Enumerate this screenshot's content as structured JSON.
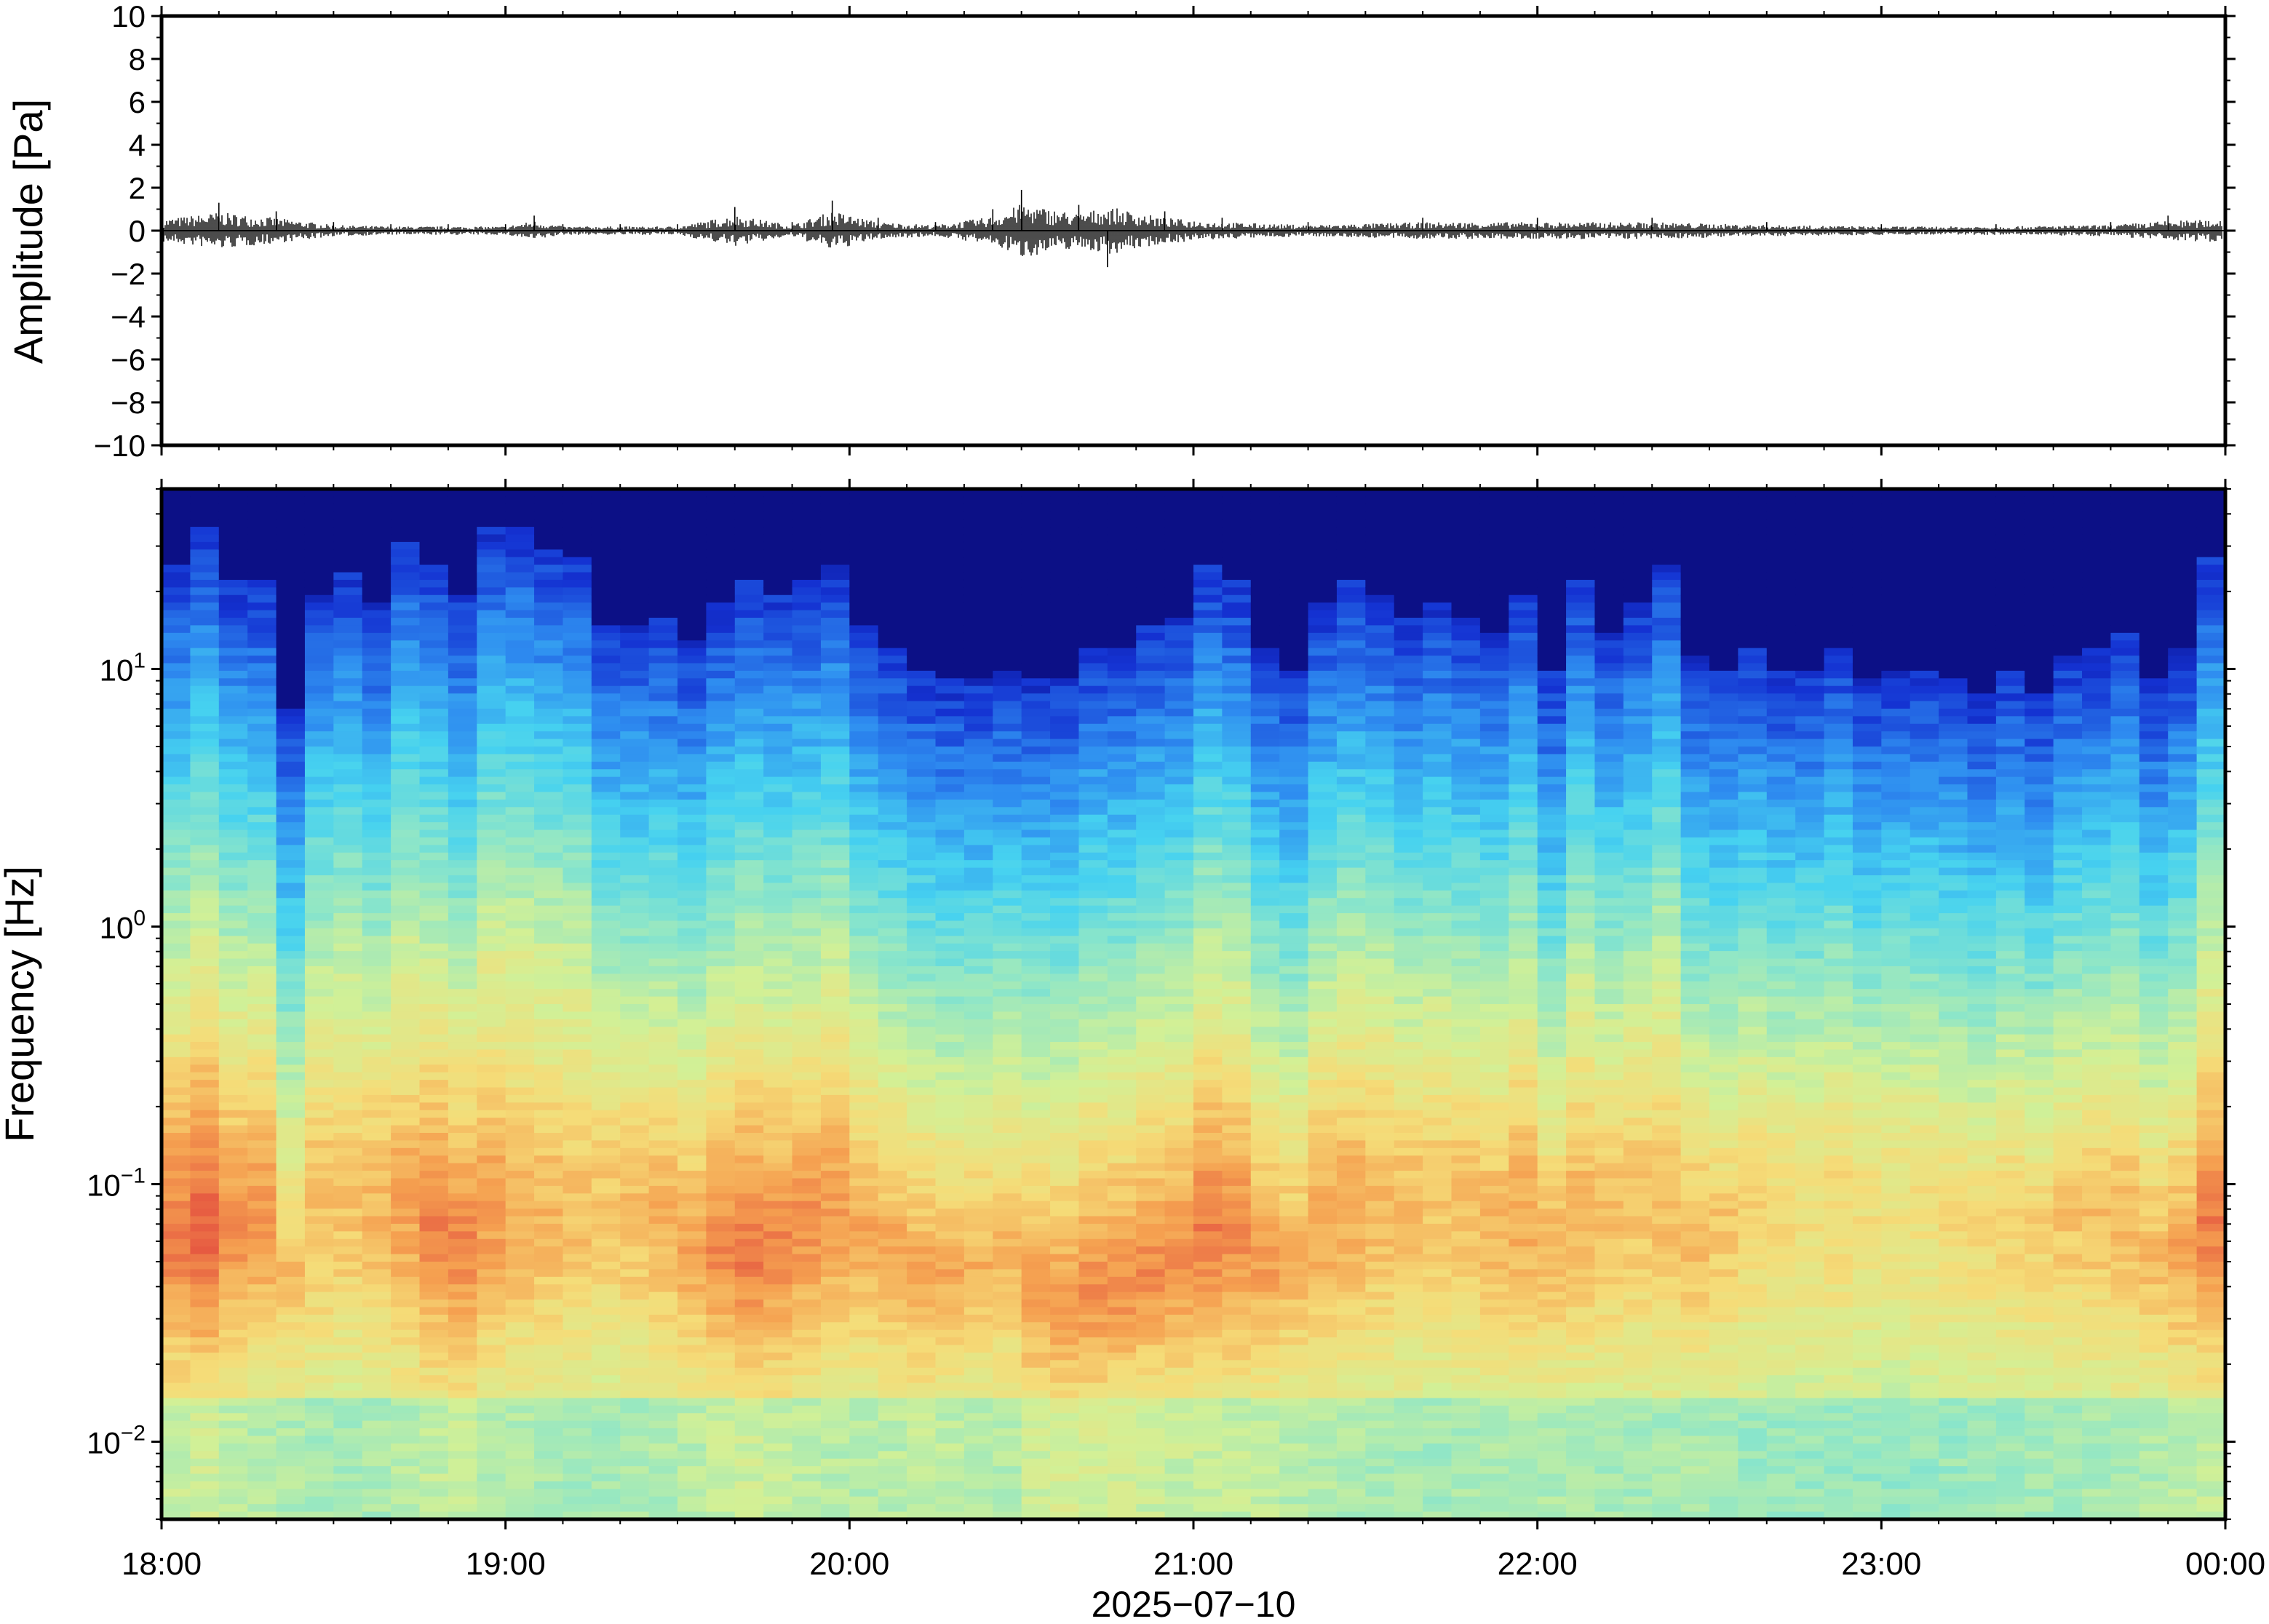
{
  "chart_data": [
    {
      "type": "line",
      "title": "",
      "ylabel": "Amplitude [Pa]",
      "xlabel": "",
      "ylim": [
        -10,
        10
      ],
      "yticks": [
        10,
        8,
        6,
        4,
        2,
        0,
        -2,
        -4,
        -6,
        -8,
        -10
      ],
      "ytick_labels": [
        "10",
        "8",
        "6",
        "4",
        "2",
        "0",
        "−2",
        "−4",
        "−6",
        "−8",
        "−10"
      ],
      "xlim": [
        "18:00",
        "00:00"
      ],
      "grid": false,
      "line_color": "#000000",
      "series": [
        {
          "values": [
            {
              "x": "18:00",
              "y": 0.8
            },
            {
              "x": "18:10",
              "y": 1.3
            },
            {
              "x": "18:20",
              "y": 0.9
            },
            {
              "x": "18:30",
              "y": 0.4
            },
            {
              "x": "18:40",
              "y": 0.3
            },
            {
              "x": "18:50",
              "y": 0.3
            },
            {
              "x": "19:00",
              "y": 0.3
            },
            {
              "x": "19:05",
              "y": 0.7
            },
            {
              "x": "19:10",
              "y": 0.3
            },
            {
              "x": "19:20",
              "y": 0.3
            },
            {
              "x": "19:30",
              "y": 0.3
            },
            {
              "x": "19:40",
              "y": 1.1
            },
            {
              "x": "19:50",
              "y": 0.4
            },
            {
              "x": "19:57",
              "y": 1.4
            },
            {
              "x": "20:05",
              "y": 0.6
            },
            {
              "x": "20:15",
              "y": 0.4
            },
            {
              "x": "20:25",
              "y": 1.0
            },
            {
              "x": "20:30",
              "y": 1.9
            },
            {
              "x": "20:40",
              "y": 1.2
            },
            {
              "x": "20:45",
              "y": -1.7
            },
            {
              "x": "20:55",
              "y": 0.9
            },
            {
              "x": "21:05",
              "y": 0.6
            },
            {
              "x": "21:20",
              "y": 0.4
            },
            {
              "x": "21:40",
              "y": 0.6
            },
            {
              "x": "22:00",
              "y": 0.6
            },
            {
              "x": "22:20",
              "y": 0.6
            },
            {
              "x": "22:40",
              "y": 0.4
            },
            {
              "x": "23:00",
              "y": 0.3
            },
            {
              "x": "23:20",
              "y": 0.3
            },
            {
              "x": "23:40",
              "y": 0.4
            },
            {
              "x": "23:50",
              "y": 0.7
            },
            {
              "x": "00:00",
              "y": 0.8
            }
          ]
        }
      ]
    },
    {
      "type": "heatmap",
      "title": "",
      "ylabel": "Frequency [Hz]",
      "xlabel": "2025−07−10",
      "y_scale": "log",
      "ylim": [
        0.005,
        50
      ],
      "yticks": [
        0.01,
        0.1,
        1,
        10
      ],
      "ytick_labels": [
        {
          "base": "10",
          "exp": "−2"
        },
        {
          "base": "10",
          "exp": "−1"
        },
        {
          "base": "10",
          "exp": "0"
        },
        {
          "base": "10",
          "exp": "1"
        }
      ],
      "x_ticks": [
        "18:00",
        "19:00",
        "20:00",
        "21:00",
        "22:00",
        "23:00",
        "00:00"
      ],
      "colormap": "jet",
      "colorscale": [
        "#0a0a78",
        "#1432d2",
        "#2e8cf0",
        "#46d2f0",
        "#8ee6c8",
        "#d2f096",
        "#f5dc78",
        "#f5a050",
        "#e65a41"
      ],
      "column_minutes": 5,
      "upper_cutoff_hz": [
        26,
        36,
        22,
        22,
        7,
        20,
        24,
        18,
        32,
        26,
        20,
        35,
        35,
        30,
        28,
        15,
        15,
        16,
        13,
        18,
        22,
        20,
        22,
        25,
        15,
        12,
        10,
        9,
        9,
        10,
        9,
        9,
        12,
        12,
        15,
        16,
        25,
        22,
        12,
        10,
        18,
        22,
        20,
        16,
        18,
        16,
        14,
        20,
        10,
        22,
        14,
        18,
        26,
        11,
        10,
        12,
        10,
        10,
        12,
        9,
        10,
        10,
        9,
        8,
        10,
        8,
        11,
        12,
        14,
        9,
        12,
        28
      ],
      "column_level": [
        0.62,
        0.7,
        0.55,
        0.5,
        0.45,
        0.4,
        0.38,
        0.42,
        0.48,
        0.58,
        0.62,
        0.5,
        0.45,
        0.42,
        0.4,
        0.38,
        0.4,
        0.44,
        0.52,
        0.6,
        0.66,
        0.62,
        0.55,
        0.5,
        0.48,
        0.52,
        0.58,
        0.55,
        0.5,
        0.48,
        0.68,
        0.75,
        0.72,
        0.7,
        0.66,
        0.62,
        0.6,
        0.58,
        0.56,
        0.5,
        0.48,
        0.45,
        0.42,
        0.4,
        0.38,
        0.4,
        0.44,
        0.46,
        0.45,
        0.42,
        0.4,
        0.38,
        0.4,
        0.42,
        0.38,
        0.32,
        0.3,
        0.28,
        0.3,
        0.28,
        0.26,
        0.28,
        0.3,
        0.32,
        0.34,
        0.36,
        0.38,
        0.4,
        0.42,
        0.46,
        0.52,
        0.6
      ]
    }
  ]
}
